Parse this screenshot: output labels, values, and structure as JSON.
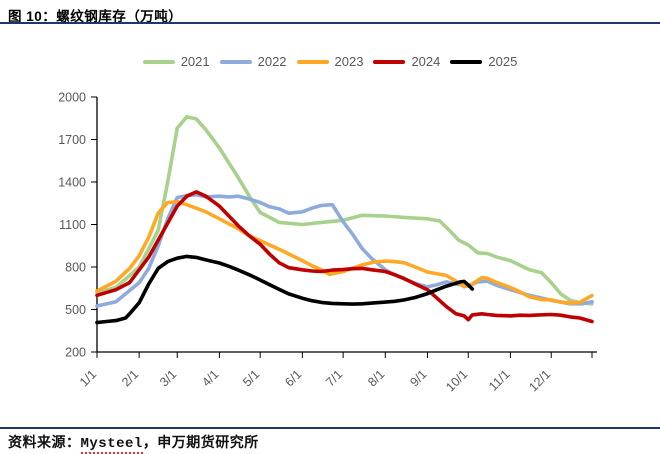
{
  "header": {
    "title": "图 10：螺纹钢库存（万吨）"
  },
  "source": {
    "prefix": "资料来源：",
    "name": "Mysteel",
    "suffix": "，申万期货研究所"
  },
  "accent_colors": {
    "rule": "#203864",
    "axis_text": "#595959",
    "spellcheck_underline": "#e03030"
  },
  "chart_data": {
    "type": "line",
    "title": "螺纹钢库存（万吨）",
    "xlabel": "",
    "ylabel": "万吨",
    "ylim": [
      200,
      2000
    ],
    "yticks": [
      200,
      500,
      800,
      1100,
      1400,
      1700,
      2000
    ],
    "xticks": [
      "1/1",
      "2/1",
      "3/1",
      "4/1",
      "5/1",
      "6/1",
      "7/1",
      "8/1",
      "9/1",
      "10/1",
      "11/1",
      "12/1"
    ],
    "month_start_days": [
      1,
      32,
      60,
      91,
      121,
      152,
      182,
      213,
      244,
      274,
      305,
      335
    ],
    "x_axis_end_day": 365,
    "grid": "off",
    "legend_position": "top-center",
    "series": [
      {
        "name": "2021",
        "color": "#A9D18E",
        "points": [
          [
            1,
            620
          ],
          [
            15,
            655
          ],
          [
            32,
            800
          ],
          [
            46,
            1060
          ],
          [
            53,
            1400
          ],
          [
            60,
            1780
          ],
          [
            67,
            1860
          ],
          [
            74,
            1845
          ],
          [
            81,
            1770
          ],
          [
            91,
            1640
          ],
          [
            105,
            1430
          ],
          [
            113,
            1300
          ],
          [
            121,
            1185
          ],
          [
            135,
            1115
          ],
          [
            152,
            1100
          ],
          [
            166,
            1115
          ],
          [
            182,
            1130
          ],
          [
            196,
            1165
          ],
          [
            213,
            1160
          ],
          [
            227,
            1150
          ],
          [
            244,
            1140
          ],
          [
            253,
            1125
          ],
          [
            260,
            1060
          ],
          [
            267,
            990
          ],
          [
            274,
            955
          ],
          [
            281,
            900
          ],
          [
            288,
            895
          ],
          [
            295,
            870
          ],
          [
            305,
            845
          ],
          [
            319,
            780
          ],
          [
            328,
            760
          ],
          [
            335,
            690
          ],
          [
            342,
            610
          ],
          [
            349,
            565
          ],
          [
            358,
            545
          ],
          [
            365,
            540
          ]
        ]
      },
      {
        "name": "2022",
        "color": "#8FAADC",
        "points": [
          [
            1,
            525
          ],
          [
            15,
            555
          ],
          [
            32,
            690
          ],
          [
            39,
            790
          ],
          [
            46,
            950
          ],
          [
            53,
            1140
          ],
          [
            60,
            1290
          ],
          [
            67,
            1305
          ],
          [
            74,
            1310
          ],
          [
            81,
            1295
          ],
          [
            91,
            1300
          ],
          [
            98,
            1295
          ],
          [
            105,
            1300
          ],
          [
            113,
            1280
          ],
          [
            121,
            1255
          ],
          [
            128,
            1225
          ],
          [
            135,
            1210
          ],
          [
            142,
            1180
          ],
          [
            152,
            1190
          ],
          [
            159,
            1215
          ],
          [
            166,
            1235
          ],
          [
            174,
            1240
          ],
          [
            182,
            1120
          ],
          [
            189,
            1030
          ],
          [
            196,
            930
          ],
          [
            203,
            860
          ],
          [
            213,
            780
          ],
          [
            220,
            745
          ],
          [
            227,
            715
          ],
          [
            235,
            685
          ],
          [
            244,
            660
          ],
          [
            251,
            675
          ],
          [
            258,
            695
          ],
          [
            265,
            680
          ],
          [
            274,
            665
          ],
          [
            281,
            695
          ],
          [
            288,
            700
          ],
          [
            295,
            670
          ],
          [
            305,
            640
          ],
          [
            319,
            600
          ],
          [
            335,
            565
          ],
          [
            349,
            540
          ],
          [
            358,
            540
          ],
          [
            365,
            555
          ]
        ]
      },
      {
        "name": "2023",
        "color": "#FFA826",
        "points": [
          [
            1,
            630
          ],
          [
            15,
            700
          ],
          [
            25,
            790
          ],
          [
            32,
            880
          ],
          [
            39,
            1010
          ],
          [
            46,
            1180
          ],
          [
            53,
            1255
          ],
          [
            60,
            1260
          ],
          [
            67,
            1240
          ],
          [
            74,
            1215
          ],
          [
            81,
            1190
          ],
          [
            91,
            1140
          ],
          [
            105,
            1070
          ],
          [
            113,
            1020
          ],
          [
            121,
            985
          ],
          [
            135,
            925
          ],
          [
            152,
            845
          ],
          [
            159,
            810
          ],
          [
            166,
            780
          ],
          [
            172,
            748
          ],
          [
            182,
            768
          ],
          [
            196,
            815
          ],
          [
            205,
            835
          ],
          [
            213,
            842
          ],
          [
            220,
            838
          ],
          [
            227,
            830
          ],
          [
            235,
            800
          ],
          [
            244,
            765
          ],
          [
            258,
            740
          ],
          [
            265,
            700
          ],
          [
            271,
            660
          ],
          [
            277,
            680
          ],
          [
            284,
            725
          ],
          [
            288,
            720
          ],
          [
            295,
            690
          ],
          [
            305,
            655
          ],
          [
            312,
            625
          ],
          [
            319,
            590
          ],
          [
            328,
            570
          ],
          [
            335,
            568
          ],
          [
            342,
            552
          ],
          [
            349,
            545
          ],
          [
            356,
            550
          ],
          [
            365,
            598
          ]
        ]
      },
      {
        "name": "2024",
        "color": "#C00000",
        "points": [
          [
            1,
            600
          ],
          [
            15,
            640
          ],
          [
            25,
            690
          ],
          [
            32,
            780
          ],
          [
            39,
            870
          ],
          [
            46,
            990
          ],
          [
            53,
            1110
          ],
          [
            60,
            1230
          ],
          [
            67,
            1300
          ],
          [
            74,
            1330
          ],
          [
            81,
            1300
          ],
          [
            91,
            1230
          ],
          [
            98,
            1160
          ],
          [
            105,
            1090
          ],
          [
            113,
            1020
          ],
          [
            121,
            960
          ],
          [
            128,
            890
          ],
          [
            135,
            830
          ],
          [
            142,
            795
          ],
          [
            152,
            780
          ],
          [
            159,
            772
          ],
          [
            166,
            768
          ],
          [
            174,
            778
          ],
          [
            182,
            782
          ],
          [
            189,
            788
          ],
          [
            196,
            790
          ],
          [
            203,
            780
          ],
          [
            213,
            768
          ],
          [
            220,
            745
          ],
          [
            227,
            718
          ],
          [
            235,
            680
          ],
          [
            244,
            640
          ],
          [
            251,
            580
          ],
          [
            258,
            520
          ],
          [
            265,
            470
          ],
          [
            271,
            455
          ],
          [
            274,
            428
          ],
          [
            277,
            462
          ],
          [
            284,
            470
          ],
          [
            288,
            465
          ],
          [
            295,
            458
          ],
          [
            305,
            455
          ],
          [
            312,
            460
          ],
          [
            319,
            458
          ],
          [
            326,
            462
          ],
          [
            335,
            465
          ],
          [
            342,
            460
          ],
          [
            349,
            448
          ],
          [
            356,
            440
          ],
          [
            365,
            415
          ]
        ]
      },
      {
        "name": "2025",
        "color": "#000000",
        "points": [
          [
            1,
            408
          ],
          [
            8,
            415
          ],
          [
            15,
            422
          ],
          [
            22,
            440
          ],
          [
            25,
            470
          ],
          [
            32,
            548
          ],
          [
            39,
            680
          ],
          [
            46,
            790
          ],
          [
            53,
            838
          ],
          [
            60,
            862
          ],
          [
            67,
            875
          ],
          [
            74,
            868
          ],
          [
            81,
            850
          ],
          [
            91,
            828
          ],
          [
            98,
            805
          ],
          [
            105,
            778
          ],
          [
            113,
            745
          ],
          [
            121,
            708
          ],
          [
            128,
            675
          ],
          [
            135,
            642
          ],
          [
            142,
            610
          ],
          [
            152,
            580
          ],
          [
            159,
            562
          ],
          [
            166,
            550
          ],
          [
            174,
            543
          ],
          [
            182,
            540
          ],
          [
            189,
            538
          ],
          [
            196,
            540
          ],
          [
            203,
            545
          ],
          [
            213,
            552
          ],
          [
            220,
            558
          ],
          [
            227,
            568
          ],
          [
            235,
            585
          ],
          [
            244,
            612
          ],
          [
            251,
            640
          ],
          [
            258,
            665
          ],
          [
            264,
            682
          ],
          [
            268,
            695
          ],
          [
            271,
            698
          ],
          [
            274,
            672
          ],
          [
            277,
            645
          ]
        ]
      }
    ]
  }
}
